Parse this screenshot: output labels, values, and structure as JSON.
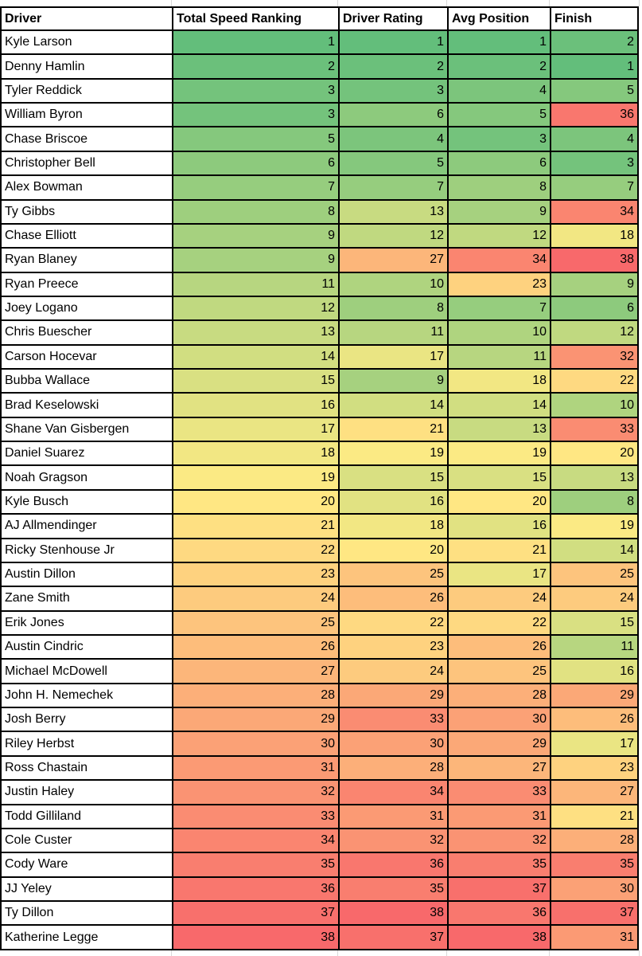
{
  "chart_data": {
    "type": "table",
    "columns": [
      "Driver",
      "Total Speed Ranking",
      "Driver Rating",
      "Avg Position",
      "Finish"
    ],
    "rows": [
      [
        "Kyle Larson",
        1,
        1,
        1,
        2
      ],
      [
        "Denny Hamlin",
        2,
        2,
        2,
        1
      ],
      [
        "Tyler Reddick",
        3,
        3,
        4,
        5
      ],
      [
        "William Byron",
        3,
        6,
        5,
        36
      ],
      [
        "Chase Briscoe",
        5,
        4,
        3,
        4
      ],
      [
        "Christopher Bell",
        6,
        5,
        6,
        3
      ],
      [
        "Alex Bowman",
        7,
        7,
        8,
        7
      ],
      [
        "Ty Gibbs",
        8,
        13,
        9,
        34
      ],
      [
        "Chase Elliott",
        9,
        12,
        12,
        18
      ],
      [
        "Ryan Blaney",
        9,
        27,
        34,
        38
      ],
      [
        "Ryan Preece",
        11,
        10,
        23,
        9
      ],
      [
        "Joey Logano",
        12,
        8,
        7,
        6
      ],
      [
        "Chris Buescher",
        13,
        11,
        10,
        12
      ],
      [
        "Carson Hocevar",
        14,
        17,
        11,
        32
      ],
      [
        "Bubba Wallace",
        15,
        9,
        18,
        22
      ],
      [
        "Brad Keselowski",
        16,
        14,
        14,
        10
      ],
      [
        "Shane Van Gisbergen",
        17,
        21,
        13,
        33
      ],
      [
        "Daniel Suarez",
        18,
        19,
        19,
        20
      ],
      [
        "Noah Gragson",
        19,
        15,
        15,
        13
      ],
      [
        "Kyle Busch",
        20,
        16,
        20,
        8
      ],
      [
        "AJ Allmendinger",
        21,
        18,
        16,
        19
      ],
      [
        "Ricky Stenhouse Jr",
        22,
        20,
        21,
        14
      ],
      [
        "Austin Dillon",
        23,
        25,
        17,
        25
      ],
      [
        "Zane Smith",
        24,
        26,
        24,
        24
      ],
      [
        "Erik Jones",
        25,
        22,
        22,
        15
      ],
      [
        "Austin Cindric",
        26,
        23,
        26,
        11
      ],
      [
        "Michael McDowell",
        27,
        24,
        25,
        16
      ],
      [
        "John H. Nemechek",
        28,
        29,
        28,
        29
      ],
      [
        "Josh Berry",
        29,
        33,
        30,
        26
      ],
      [
        "Riley Herbst",
        30,
        30,
        29,
        17
      ],
      [
        "Ross Chastain",
        31,
        28,
        27,
        23
      ],
      [
        "Justin Haley",
        32,
        34,
        33,
        27
      ],
      [
        "Todd Gilliland",
        33,
        31,
        31,
        21
      ],
      [
        "Cole Custer",
        34,
        32,
        32,
        28
      ],
      [
        "Cody Ware",
        35,
        36,
        35,
        35
      ],
      [
        "JJ Yeley",
        36,
        35,
        37,
        30
      ],
      [
        "Ty Dillon",
        37,
        38,
        36,
        37
      ],
      [
        "Katherine Legge",
        38,
        37,
        38,
        31
      ]
    ],
    "heatmap": {
      "min": {
        "value": 1,
        "color": "#63BE7B"
      },
      "mid": {
        "value": 19.5,
        "color": "#FFEB84"
      },
      "max": {
        "value": 38,
        "color": "#F8696B"
      }
    },
    "legend_position": "none",
    "grid": "on"
  },
  "styles": {
    "border_color": "#000000",
    "gridline_color": "#D9D9D9",
    "text_color": "#000000",
    "driver_cell_bg": "#FFFFFF"
  }
}
